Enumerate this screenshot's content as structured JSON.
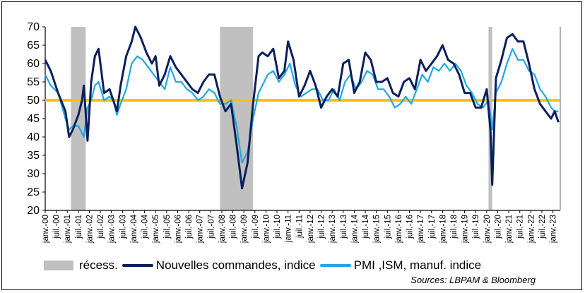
{
  "chart_data": {
    "type": "line",
    "title": "",
    "xlabel": "",
    "ylabel": "",
    "ylim": [
      20,
      70
    ],
    "yticks": [
      20,
      25,
      30,
      35,
      40,
      45,
      50,
      55,
      60,
      65,
      70
    ],
    "xrange": [
      "2000-01",
      "2023-05"
    ],
    "xtick_labels": [
      "janv.-00",
      "juil.-00",
      "janv.-01",
      "juil.-01",
      "janv.-02",
      "juil.-02",
      "janv.-03",
      "juil.-03",
      "janv.-04",
      "juil.-04",
      "janv.-05",
      "juil.-05",
      "janv.-06",
      "juil.-06",
      "janv.-07",
      "juil.-07",
      "janv.-08",
      "juil.-08",
      "janv.-09",
      "juil.-09",
      "janv.-10",
      "juil.-10",
      "janv.-11",
      "juil.-11",
      "janv.-12",
      "juil.-12",
      "janv.-13",
      "juil.-13",
      "janv.-14",
      "juil.-14",
      "janv.-15",
      "juil.-15",
      "janv.-16",
      "juil.-16",
      "janv.-17",
      "juil.-17",
      "janv.-18",
      "juil.-18",
      "janv.-19",
      "juil.-19",
      "janv.-20",
      "juil.-20",
      "janv.-21",
      "juil.-21",
      "janv.-22",
      "juil.-22",
      "janv.-23"
    ],
    "recessions": [
      {
        "start": "2001-03",
        "end": "2001-11"
      },
      {
        "start": "2007-12",
        "end": "2009-06"
      },
      {
        "start": "2020-02",
        "end": "2020-04"
      }
    ],
    "reference_line": {
      "value": 50,
      "color": "#FFC000"
    },
    "series": [
      {
        "name": "Nouvelles commandes, indice",
        "color": "#0B1F5C",
        "points": [
          [
            "2000-01",
            61
          ],
          [
            "2000-04",
            58
          ],
          [
            "2000-08",
            52
          ],
          [
            "2000-12",
            47
          ],
          [
            "2001-02",
            40
          ],
          [
            "2001-04",
            42
          ],
          [
            "2001-07",
            46
          ],
          [
            "2001-09",
            50
          ],
          [
            "2001-10",
            54
          ],
          [
            "2001-12",
            39
          ],
          [
            "2002-02",
            55
          ],
          [
            "2002-04",
            62
          ],
          [
            "2002-06",
            64
          ],
          [
            "2002-09",
            52
          ],
          [
            "2002-12",
            53
          ],
          [
            "2003-02",
            50
          ],
          [
            "2003-04",
            47
          ],
          [
            "2003-06",
            54
          ],
          [
            "2003-09",
            62
          ],
          [
            "2003-12",
            66
          ],
          [
            "2004-02",
            70
          ],
          [
            "2004-05",
            67
          ],
          [
            "2004-08",
            63
          ],
          [
            "2004-11",
            60
          ],
          [
            "2005-01",
            62
          ],
          [
            "2005-03",
            54
          ],
          [
            "2005-06",
            57
          ],
          [
            "2005-09",
            62
          ],
          [
            "2005-12",
            59
          ],
          [
            "2006-03",
            57
          ],
          [
            "2006-06",
            55
          ],
          [
            "2006-09",
            53
          ],
          [
            "2006-12",
            52
          ],
          [
            "2007-03",
            55
          ],
          [
            "2007-06",
            57
          ],
          [
            "2007-09",
            57
          ],
          [
            "2007-12",
            51
          ],
          [
            "2008-03",
            47
          ],
          [
            "2008-06",
            49
          ],
          [
            "2008-09",
            38
          ],
          [
            "2008-12",
            26
          ],
          [
            "2009-03",
            33
          ],
          [
            "2009-06",
            49
          ],
          [
            "2009-09",
            62
          ],
          [
            "2009-11",
            63
          ],
          [
            "2010-02",
            62
          ],
          [
            "2010-05",
            64
          ],
          [
            "2010-08",
            56
          ],
          [
            "2010-11",
            58
          ],
          [
            "2011-01",
            66
          ],
          [
            "2011-04",
            61
          ],
          [
            "2011-07",
            51
          ],
          [
            "2011-10",
            54
          ],
          [
            "2012-01",
            58
          ],
          [
            "2012-04",
            54
          ],
          [
            "2012-07",
            48
          ],
          [
            "2012-10",
            51
          ],
          [
            "2013-01",
            53
          ],
          [
            "2013-04",
            51
          ],
          [
            "2013-07",
            60
          ],
          [
            "2013-10",
            61
          ],
          [
            "2014-01",
            52
          ],
          [
            "2014-04",
            55
          ],
          [
            "2014-07",
            63
          ],
          [
            "2014-10",
            61
          ],
          [
            "2015-01",
            55
          ],
          [
            "2015-04",
            55
          ],
          [
            "2015-07",
            56
          ],
          [
            "2015-10",
            52
          ],
          [
            "2016-01",
            51
          ],
          [
            "2016-04",
            55
          ],
          [
            "2016-07",
            56
          ],
          [
            "2016-10",
            53
          ],
          [
            "2017-01",
            61
          ],
          [
            "2017-04",
            58
          ],
          [
            "2017-07",
            60
          ],
          [
            "2017-10",
            62
          ],
          [
            "2018-01",
            65
          ],
          [
            "2018-04",
            61
          ],
          [
            "2018-07",
            60
          ],
          [
            "2018-10",
            57
          ],
          [
            "2019-01",
            52
          ],
          [
            "2019-04",
            52
          ],
          [
            "2019-07",
            48
          ],
          [
            "2019-10",
            48
          ],
          [
            "2020-01",
            53
          ],
          [
            "2020-03",
            42
          ],
          [
            "2020-04",
            27
          ],
          [
            "2020-06",
            56
          ],
          [
            "2020-09",
            61
          ],
          [
            "2020-12",
            67
          ],
          [
            "2021-03",
            68
          ],
          [
            "2021-06",
            66
          ],
          [
            "2021-09",
            66
          ],
          [
            "2021-12",
            60
          ],
          [
            "2022-03",
            53
          ],
          [
            "2022-06",
            49
          ],
          [
            "2022-09",
            47
          ],
          [
            "2022-12",
            45
          ],
          [
            "2023-02",
            47
          ],
          [
            "2023-04",
            44
          ]
        ]
      },
      {
        "name": "PMI ,ISM, manuf. indice",
        "color": "#1FA7E1",
        "points": [
          [
            "2000-01",
            57
          ],
          [
            "2000-04",
            54
          ],
          [
            "2000-08",
            52
          ],
          [
            "2000-12",
            45
          ],
          [
            "2001-02",
            42
          ],
          [
            "2001-04",
            43
          ],
          [
            "2001-07",
            43
          ],
          [
            "2001-10",
            40
          ],
          [
            "2001-12",
            48
          ],
          [
            "2002-02",
            50
          ],
          [
            "2002-04",
            54
          ],
          [
            "2002-06",
            55
          ],
          [
            "2002-09",
            50
          ],
          [
            "2002-12",
            51
          ],
          [
            "2003-02",
            50
          ],
          [
            "2003-04",
            46
          ],
          [
            "2003-06",
            49
          ],
          [
            "2003-09",
            53
          ],
          [
            "2003-12",
            60
          ],
          [
            "2004-03",
            62
          ],
          [
            "2004-06",
            61
          ],
          [
            "2004-09",
            59
          ],
          [
            "2004-12",
            57
          ],
          [
            "2005-03",
            55
          ],
          [
            "2005-06",
            53
          ],
          [
            "2005-09",
            59
          ],
          [
            "2005-12",
            55
          ],
          [
            "2006-03",
            55
          ],
          [
            "2006-06",
            53
          ],
          [
            "2006-09",
            52
          ],
          [
            "2006-12",
            50
          ],
          [
            "2007-03",
            51
          ],
          [
            "2007-06",
            53
          ],
          [
            "2007-09",
            52
          ],
          [
            "2007-12",
            49
          ],
          [
            "2008-03",
            49
          ],
          [
            "2008-06",
            50
          ],
          [
            "2008-09",
            43
          ],
          [
            "2008-12",
            33
          ],
          [
            "2009-03",
            36
          ],
          [
            "2009-06",
            45
          ],
          [
            "2009-09",
            52
          ],
          [
            "2009-12",
            55
          ],
          [
            "2010-02",
            57
          ],
          [
            "2010-05",
            58
          ],
          [
            "2010-08",
            55
          ],
          [
            "2010-11",
            57
          ],
          [
            "2011-02",
            60
          ],
          [
            "2011-05",
            54
          ],
          [
            "2011-08",
            51
          ],
          [
            "2011-11",
            52
          ],
          [
            "2012-02",
            53
          ],
          [
            "2012-05",
            53
          ],
          [
            "2012-08",
            50
          ],
          [
            "2012-11",
            50
          ],
          [
            "2013-02",
            53
          ],
          [
            "2013-05",
            50
          ],
          [
            "2013-08",
            55
          ],
          [
            "2013-11",
            57
          ],
          [
            "2014-02",
            53
          ],
          [
            "2014-05",
            55
          ],
          [
            "2014-08",
            58
          ],
          [
            "2014-11",
            57
          ],
          [
            "2015-02",
            53
          ],
          [
            "2015-05",
            53
          ],
          [
            "2015-08",
            51
          ],
          [
            "2015-11",
            48
          ],
          [
            "2016-02",
            49
          ],
          [
            "2016-05",
            51
          ],
          [
            "2016-08",
            49
          ],
          [
            "2016-11",
            53
          ],
          [
            "2017-02",
            57
          ],
          [
            "2017-05",
            55
          ],
          [
            "2017-08",
            59
          ],
          [
            "2017-11",
            58
          ],
          [
            "2018-02",
            60
          ],
          [
            "2018-05",
            58
          ],
          [
            "2018-08",
            60
          ],
          [
            "2018-11",
            58
          ],
          [
            "2019-02",
            54
          ],
          [
            "2019-05",
            52
          ],
          [
            "2019-08",
            49
          ],
          [
            "2019-11",
            48
          ],
          [
            "2020-02",
            50
          ],
          [
            "2020-04",
            42
          ],
          [
            "2020-06",
            52
          ],
          [
            "2020-09",
            55
          ],
          [
            "2020-12",
            60
          ],
          [
            "2021-03",
            64
          ],
          [
            "2021-06",
            61
          ],
          [
            "2021-09",
            61
          ],
          [
            "2021-12",
            58
          ],
          [
            "2022-03",
            57
          ],
          [
            "2022-06",
            53
          ],
          [
            "2022-09",
            51
          ],
          [
            "2022-12",
            48
          ],
          [
            "2023-02",
            47
          ],
          [
            "2023-04",
            47
          ]
        ]
      }
    ]
  },
  "legend": {
    "recession_label": "récess.",
    "series1_label": "Nouvelles commandes, indice",
    "series2_label": "PMI ,ISM, manuf. indice",
    "recession_color": "#c0c0c0",
    "series1_color": "#0B1F5C",
    "series2_color": "#1FA7E1"
  },
  "source": "Sources: LBPAM & Bloomberg"
}
